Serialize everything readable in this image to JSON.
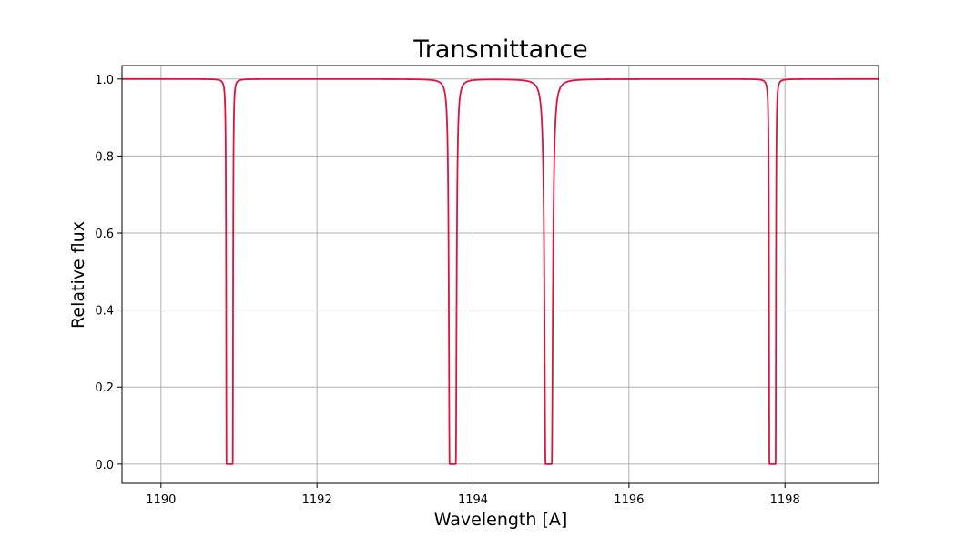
{
  "chart_data": {
    "type": "line",
    "title": "Transmittance",
    "xlabel": "Wavelength [A]",
    "ylabel": "Relative flux",
    "xlim": [
      1189.5,
      1199.2
    ],
    "ylim": [
      -0.05,
      1.035
    ],
    "x_ticks": [
      1190,
      1192,
      1194,
      1196,
      1198
    ],
    "x_tick_labels": [
      "1190",
      "1192",
      "1194",
      "1196",
      "1198"
    ],
    "y_ticks": [
      0.0,
      0.2,
      0.4,
      0.6,
      0.8,
      1.0
    ],
    "y_tick_labels": [
      "0.0",
      "0.2",
      "0.4",
      "0.6",
      "0.8",
      "1.0"
    ],
    "grid": true,
    "line_color": "#dc143c",
    "series": [
      {
        "baseline": 1.0,
        "absorption_lines": [
          {
            "center": 1190.88,
            "min_flux": 0.0,
            "saturated_width": 0.04,
            "wing_width": 0.03
          },
          {
            "center": 1193.74,
            "min_flux": 0.0,
            "saturated_width": 0.04,
            "wing_width": 0.07
          },
          {
            "center": 1194.97,
            "min_flux": 0.0,
            "saturated_width": 0.04,
            "wing_width": 0.1
          },
          {
            "center": 1197.84,
            "min_flux": 0.0,
            "saturated_width": 0.04,
            "wing_width": 0.03
          }
        ]
      }
    ]
  }
}
